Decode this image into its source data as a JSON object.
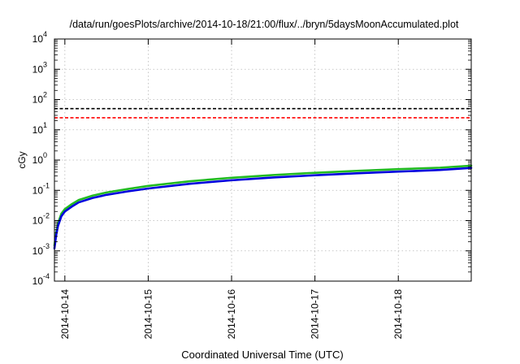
{
  "chart_data": {
    "type": "line",
    "title": "/data/run/goesPlots/archive/2014-10-18/21:00/flux/../bryn/5daysMoonAccumulated.plot",
    "xlabel": "Coordinated Universal Time (UTC)",
    "ylabel": "cGy",
    "y_scale": "log",
    "ylim": [
      0.0001,
      10000
    ],
    "xlim": [
      "2014-10-13T21:00",
      "2014-10-18T21:00"
    ],
    "grid": true,
    "legend": "none",
    "y_ticks": [
      {
        "base": "10",
        "exp": "-4",
        "value": 0.0001
      },
      {
        "base": "10",
        "exp": "-3",
        "value": 0.001
      },
      {
        "base": "10",
        "exp": "-2",
        "value": 0.01
      },
      {
        "base": "10",
        "exp": "-1",
        "value": 0.1
      },
      {
        "base": "10",
        "exp": "0",
        "value": 1
      },
      {
        "base": "10",
        "exp": "1",
        "value": 10
      },
      {
        "base": "10",
        "exp": "2",
        "value": 100
      },
      {
        "base": "10",
        "exp": "3",
        "value": 1000
      },
      {
        "base": "10",
        "exp": "4",
        "value": 10000
      }
    ],
    "x_ticks": [
      {
        "label": "2014-10-14",
        "value": "2014-10-14T00:00"
      },
      {
        "label": "2014-10-15",
        "value": "2014-10-15T00:00"
      },
      {
        "label": "2014-10-16",
        "value": "2014-10-16T00:00"
      },
      {
        "label": "2014-10-17",
        "value": "2014-10-17T00:00"
      },
      {
        "label": "2014-10-18",
        "value": "2014-10-18T00:00"
      }
    ],
    "reference_lines": [
      {
        "y": 50,
        "color": "#000000",
        "style": "dashed"
      },
      {
        "y": 25,
        "color": "#ff0000",
        "style": "dashed"
      }
    ],
    "series": [
      {
        "color": "#22bb22",
        "x": [
          "2014-10-13T21:00",
          "2014-10-13T21:30",
          "2014-10-13T22:00",
          "2014-10-13T23:00",
          "2014-10-14T00:00",
          "2014-10-14T02:00",
          "2014-10-14T04:00",
          "2014-10-14T08:00",
          "2014-10-14T12:00",
          "2014-10-14T18:00",
          "2014-10-15T00:00",
          "2014-10-15T12:00",
          "2014-10-16T00:00",
          "2014-10-16T12:00",
          "2014-10-17T00:00",
          "2014-10-17T12:00",
          "2014-10-18T00:00",
          "2014-10-18T12:00",
          "2014-10-18T21:00"
        ],
        "values": [
          0.0015,
          0.004,
          0.008,
          0.017,
          0.024,
          0.035,
          0.048,
          0.067,
          0.085,
          0.11,
          0.14,
          0.2,
          0.26,
          0.32,
          0.38,
          0.44,
          0.5,
          0.56,
          0.65
        ]
      },
      {
        "color": "#0000dd",
        "x": [
          "2014-10-13T21:00",
          "2014-10-13T21:30",
          "2014-10-13T22:00",
          "2014-10-13T23:00",
          "2014-10-14T00:00",
          "2014-10-14T02:00",
          "2014-10-14T04:00",
          "2014-10-14T08:00",
          "2014-10-14T12:00",
          "2014-10-14T18:00",
          "2014-10-15T00:00",
          "2014-10-15T12:00",
          "2014-10-16T00:00",
          "2014-10-16T12:00",
          "2014-10-17T00:00",
          "2014-10-17T12:00",
          "2014-10-18T00:00",
          "2014-10-18T12:00",
          "2014-10-18T21:00"
        ],
        "values": [
          0.0012,
          0.0033,
          0.0065,
          0.014,
          0.02,
          0.029,
          0.04,
          0.056,
          0.071,
          0.092,
          0.115,
          0.165,
          0.215,
          0.265,
          0.315,
          0.365,
          0.415,
          0.47,
          0.55
        ]
      }
    ]
  }
}
